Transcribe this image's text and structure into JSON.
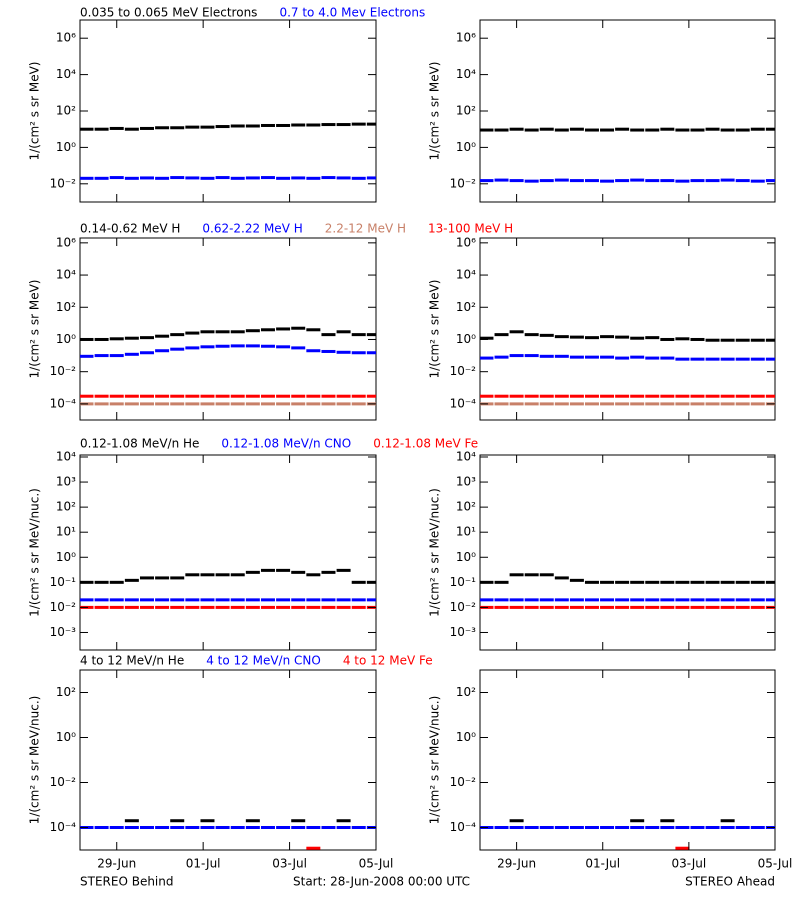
{
  "time_axis": {
    "xlim": [
      0.15,
      7
    ],
    "xticks": [
      {
        "value": 1,
        "label": "29-Jun"
      },
      {
        "value": 3,
        "label": "01-Jul"
      },
      {
        "value": 5,
        "label": "03-Jul"
      },
      {
        "value": 7,
        "label": "05-Jul"
      }
    ],
    "x": [
      0.3,
      0.65,
      1.0,
      1.35,
      1.7,
      2.05,
      2.4,
      2.75,
      3.1,
      3.45,
      3.8,
      4.15,
      4.5,
      4.85,
      5.2,
      5.55,
      5.9,
      6.25,
      6.6,
      6.95
    ]
  },
  "footer": {
    "left": "STEREO Behind",
    "center": "Start: 28-Jun-2008 00:00 UTC",
    "right": "STEREO Ahead"
  },
  "chart_data": [
    {
      "type": "scatter",
      "ylog": true,
      "ylabel": "1/(cm² s sr MeV)",
      "ylim": [
        0.001,
        10000000
      ],
      "yticks": [
        {
          "value": 0.01,
          "label": "10⁻²"
        },
        {
          "value": 1,
          "label": "10⁰"
        },
        {
          "value": 100,
          "label": "10²"
        },
        {
          "value": 10000,
          "label": "10⁴"
        },
        {
          "value": 1000000,
          "label": "10⁶"
        }
      ],
      "series": [
        {
          "name": "0.035 to 0.065 MeV Electrons",
          "color": "#000000",
          "values": [
            10,
            10,
            11,
            10,
            11,
            12,
            12,
            13,
            13,
            14,
            15,
            15,
            16,
            16,
            17,
            17,
            18,
            18,
            19,
            19
          ]
        },
        {
          "name": "0.7 to 4.0 Mev Electrons",
          "color": "#0000ff",
          "values": [
            0.02,
            0.02,
            0.022,
            0.02,
            0.021,
            0.02,
            0.022,
            0.021,
            0.02,
            0.022,
            0.02,
            0.021,
            0.022,
            0.02,
            0.021,
            0.02,
            0.022,
            0.021,
            0.02,
            0.021
          ]
        }
      ]
    },
    {
      "type": "scatter",
      "ylog": true,
      "ylabel": "1/(cm² s sr MeV)",
      "ylim": [
        0.001,
        10000000
      ],
      "yticks": [
        {
          "value": 0.01,
          "label": "10⁻²"
        },
        {
          "value": 1,
          "label": "10⁰"
        },
        {
          "value": 100,
          "label": "10²"
        },
        {
          "value": 10000,
          "label": "10⁴"
        },
        {
          "value": 1000000,
          "label": "10⁶"
        }
      ],
      "series": [
        {
          "color": "#000000",
          "values": [
            9,
            9,
            10,
            9,
            10,
            9,
            10,
            9,
            9,
            10,
            9,
            9,
            10,
            9,
            9,
            10,
            9,
            9,
            10,
            10
          ]
        },
        {
          "color": "#0000ff",
          "values": [
            0.015,
            0.016,
            0.015,
            0.014,
            0.015,
            0.016,
            0.015,
            0.015,
            0.014,
            0.015,
            0.016,
            0.015,
            0.015,
            0.014,
            0.015,
            0.015,
            0.016,
            0.015,
            0.014,
            0.015
          ]
        }
      ]
    },
    {
      "type": "scatter",
      "ylog": true,
      "ylabel": "1/(cm² s sr MeV)",
      "ylim": [
        1e-05,
        2000000
      ],
      "yticks": [
        {
          "value": 0.0001,
          "label": "10⁻⁴"
        },
        {
          "value": 0.01,
          "label": "10⁻²"
        },
        {
          "value": 1,
          "label": "10⁰"
        },
        {
          "value": 100,
          "label": "10²"
        },
        {
          "value": 10000,
          "label": "10⁴"
        },
        {
          "value": 1000000,
          "label": "10⁶"
        }
      ],
      "series": [
        {
          "name": "0.14-0.62 MeV H",
          "color": "#000000",
          "values": [
            1,
            1,
            1.1,
            1.2,
            1.3,
            1.6,
            2,
            2.5,
            3,
            3,
            3,
            3.5,
            4,
            4.5,
            5,
            4,
            2,
            3,
            2,
            2
          ]
        },
        {
          "name": "0.62-2.22 MeV H",
          "color": "#0000ff",
          "values": [
            0.09,
            0.1,
            0.1,
            0.12,
            0.15,
            0.2,
            0.25,
            0.3,
            0.35,
            0.38,
            0.4,
            0.4,
            0.38,
            0.35,
            0.3,
            0.2,
            0.18,
            0.16,
            0.15,
            0.15
          ]
        },
        {
          "name": "2.2-12 MeV H",
          "color": "#c88068",
          "values": [
            0.0001,
            0.0001,
            0.0001,
            0.0001,
            0.0001,
            0.0001,
            0.0001,
            0.0001,
            0.0001,
            0.0001,
            0.0001,
            0.0001,
            0.0001,
            0.0001,
            0.0001,
            0.0001,
            0.0001,
            0.0001,
            0.0001,
            0.0001
          ]
        },
        {
          "name": "13-100 MeV H",
          "color": "#ff0000",
          "values": [
            0.0003,
            0.0003,
            0.0003,
            0.0003,
            0.0003,
            0.0003,
            0.0003,
            0.0003,
            0.0003,
            0.0003,
            0.0003,
            0.0003,
            0.0003,
            0.0003,
            0.0003,
            0.0003,
            0.0003,
            0.0003,
            0.0003,
            0.0003
          ]
        }
      ]
    },
    {
      "type": "scatter",
      "ylog": true,
      "ylabel": "1/(cm² s sr MeV)",
      "ylim": [
        1e-05,
        2000000
      ],
      "yticks": [
        {
          "value": 0.0001,
          "label": "10⁻⁴"
        },
        {
          "value": 0.01,
          "label": "10⁻²"
        },
        {
          "value": 1,
          "label": "10⁰"
        },
        {
          "value": 100,
          "label": "10²"
        },
        {
          "value": 10000,
          "label": "10⁴"
        },
        {
          "value": 1000000,
          "label": "10⁶"
        }
      ],
      "series": [
        {
          "color": "#000000",
          "values": [
            1.2,
            2,
            3,
            2,
            1.8,
            1.5,
            1.4,
            1.3,
            1.5,
            1.4,
            1.2,
            1.3,
            1,
            1.1,
            1,
            0.9,
            0.9,
            0.9,
            0.9,
            0.9
          ]
        },
        {
          "color": "#0000ff",
          "values": [
            0.07,
            0.08,
            0.1,
            0.1,
            0.09,
            0.09,
            0.08,
            0.08,
            0.08,
            0.07,
            0.08,
            0.07,
            0.07,
            0.06,
            0.06,
            0.06,
            0.06,
            0.06,
            0.06,
            0.06
          ]
        },
        {
          "color": "#c88068",
          "values": [
            0.0001,
            0.0001,
            0.0001,
            0.0001,
            0.0001,
            0.0001,
            0.0001,
            0.0001,
            0.0001,
            0.0001,
            0.0001,
            0.0001,
            0.0001,
            0.0001,
            0.0001,
            0.0001,
            0.0001,
            0.0001,
            0.0001,
            0.0001
          ]
        },
        {
          "color": "#ff0000",
          "values": [
            0.0003,
            0.0003,
            0.0003,
            0.0003,
            0.0003,
            0.0003,
            0.0003,
            0.0003,
            0.0003,
            0.0003,
            0.0003,
            0.0003,
            0.0003,
            0.0003,
            0.0003,
            0.0003,
            0.0003,
            0.0003,
            0.0003,
            0.0003
          ]
        }
      ]
    },
    {
      "type": "scatter",
      "ylog": true,
      "ylabel": "1/(cm² s sr MeV/nuc.)",
      "ylim": [
        0.0002,
        12000
      ],
      "yticks": [
        {
          "value": 0.001,
          "label": "10⁻³"
        },
        {
          "value": 0.01,
          "label": "10⁻²"
        },
        {
          "value": 0.1,
          "label": "10⁻¹"
        },
        {
          "value": 1,
          "label": "10⁰"
        },
        {
          "value": 10,
          "label": "10¹"
        },
        {
          "value": 100,
          "label": "10²"
        },
        {
          "value": 1000,
          "label": "10³"
        },
        {
          "value": 10000,
          "label": "10⁴"
        }
      ],
      "series": [
        {
          "name": "0.12-1.08 MeV/n He",
          "color": "#000000",
          "values": [
            0.1,
            0.1,
            0.1,
            0.12,
            0.15,
            0.15,
            0.15,
            0.2,
            0.2,
            0.2,
            0.2,
            0.25,
            0.3,
            0.3,
            0.25,
            0.2,
            0.25,
            0.3,
            0.1,
            0.1
          ]
        },
        {
          "name": "0.12-1.08 MeV/n CNO",
          "color": "#0000ff",
          "values": [
            0.02,
            0.02,
            0.02,
            0.02,
            0.02,
            0.02,
            0.02,
            0.02,
            0.02,
            0.02,
            0.02,
            0.02,
            0.02,
            0.02,
            0.02,
            0.02,
            0.02,
            0.02,
            0.02,
            0.02
          ]
        },
        {
          "name": "0.12-1.08 MeV Fe",
          "color": "#ff0000",
          "values": [
            0.01,
            0.01,
            0.01,
            0.01,
            0.01,
            0.01,
            0.01,
            0.01,
            0.01,
            0.01,
            0.01,
            0.01,
            0.01,
            0.01,
            0.01,
            0.01,
            0.01,
            0.01,
            0.01,
            0.01
          ]
        }
      ]
    },
    {
      "type": "scatter",
      "ylog": true,
      "ylabel": "1/(cm² s sr MeV/nuc.)",
      "ylim": [
        0.0002,
        12000
      ],
      "yticks": [
        {
          "value": 0.001,
          "label": "10⁻³"
        },
        {
          "value": 0.01,
          "label": "10⁻²"
        },
        {
          "value": 0.1,
          "label": "10⁻¹"
        },
        {
          "value": 1,
          "label": "10⁰"
        },
        {
          "value": 10,
          "label": "10¹"
        },
        {
          "value": 100,
          "label": "10²"
        },
        {
          "value": 1000,
          "label": "10³"
        },
        {
          "value": 10000,
          "label": "10⁴"
        }
      ],
      "series": [
        {
          "color": "#000000",
          "values": [
            0.1,
            0.1,
            0.2,
            0.2,
            0.2,
            0.15,
            0.12,
            0.1,
            0.1,
            0.1,
            0.1,
            0.1,
            0.1,
            0.1,
            0.1,
            0.1,
            0.1,
            0.1,
            0.1,
            0.1
          ]
        },
        {
          "color": "#0000ff",
          "values": [
            0.02,
            0.02,
            0.02,
            0.02,
            0.02,
            0.02,
            0.02,
            0.02,
            0.02,
            0.02,
            0.02,
            0.02,
            0.02,
            0.02,
            0.02,
            0.02,
            0.02,
            0.02,
            0.02,
            0.02
          ]
        },
        {
          "color": "#ff0000",
          "values": [
            0.01,
            0.01,
            0.01,
            0.01,
            0.01,
            0.01,
            0.01,
            0.01,
            0.01,
            0.01,
            0.01,
            0.01,
            0.01,
            0.01,
            0.01,
            0.01,
            0.01,
            0.01,
            0.01,
            0.01
          ]
        }
      ]
    },
    {
      "type": "scatter",
      "ylog": true,
      "ylabel": "1/(cm² s sr MeV/nuc.)",
      "ylim": [
        1e-05,
        1000
      ],
      "yticks": [
        {
          "value": 0.0001,
          "label": "10⁻⁴"
        },
        {
          "value": 0.01,
          "label": "10⁻²"
        },
        {
          "value": 1,
          "label": "10⁰"
        },
        {
          "value": 100,
          "label": "10²"
        }
      ],
      "series": [
        {
          "name": "4 to 12 MeV/n He",
          "color": "#000000",
          "values": [
            null,
            null,
            null,
            0.0002,
            null,
            null,
            0.0002,
            null,
            0.0002,
            null,
            null,
            0.0002,
            null,
            null,
            0.0002,
            null,
            null,
            0.0002,
            null,
            null
          ]
        },
        {
          "name": "4 to 12 MeV/n CNO",
          "color": "#0000ff",
          "values": [
            0.0001,
            0.0001,
            0.0001,
            0.0001,
            0.0001,
            0.0001,
            0.0001,
            0.0001,
            0.0001,
            0.0001,
            0.0001,
            0.0001,
            0.0001,
            0.0001,
            0.0001,
            0.0001,
            0.0001,
            0.0001,
            0.0001,
            0.0001
          ]
        },
        {
          "name": "4 to 12 MeV Fe",
          "color": "#ff0000",
          "values": [
            null,
            null,
            null,
            null,
            null,
            null,
            null,
            null,
            null,
            null,
            null,
            null,
            null,
            null,
            null,
            1.2e-05,
            null,
            null,
            null,
            null
          ]
        }
      ]
    },
    {
      "type": "scatter",
      "ylog": true,
      "ylabel": "1/(cm² s sr MeV/nuc.)",
      "ylim": [
        1e-05,
        1000
      ],
      "yticks": [
        {
          "value": 0.0001,
          "label": "10⁻⁴"
        },
        {
          "value": 0.01,
          "label": "10⁻²"
        },
        {
          "value": 1,
          "label": "10⁰"
        },
        {
          "value": 100,
          "label": "10²"
        }
      ],
      "series": [
        {
          "color": "#000000",
          "values": [
            null,
            null,
            0.0002,
            null,
            null,
            null,
            null,
            null,
            null,
            null,
            0.0002,
            null,
            0.0002,
            null,
            null,
            null,
            0.0002,
            null,
            null,
            null
          ]
        },
        {
          "color": "#0000ff",
          "values": [
            0.0001,
            0.0001,
            0.0001,
            0.0001,
            0.0001,
            0.0001,
            0.0001,
            0.0001,
            0.0001,
            0.0001,
            0.0001,
            0.0001,
            0.0001,
            0.0001,
            0.0001,
            0.0001,
            0.0001,
            0.0001,
            0.0001,
            0.0001
          ]
        },
        {
          "color": "#ff0000",
          "values": [
            null,
            null,
            null,
            null,
            null,
            null,
            null,
            null,
            null,
            null,
            null,
            null,
            null,
            1.2e-05,
            null,
            null,
            null,
            null,
            null,
            null
          ]
        }
      ]
    }
  ]
}
